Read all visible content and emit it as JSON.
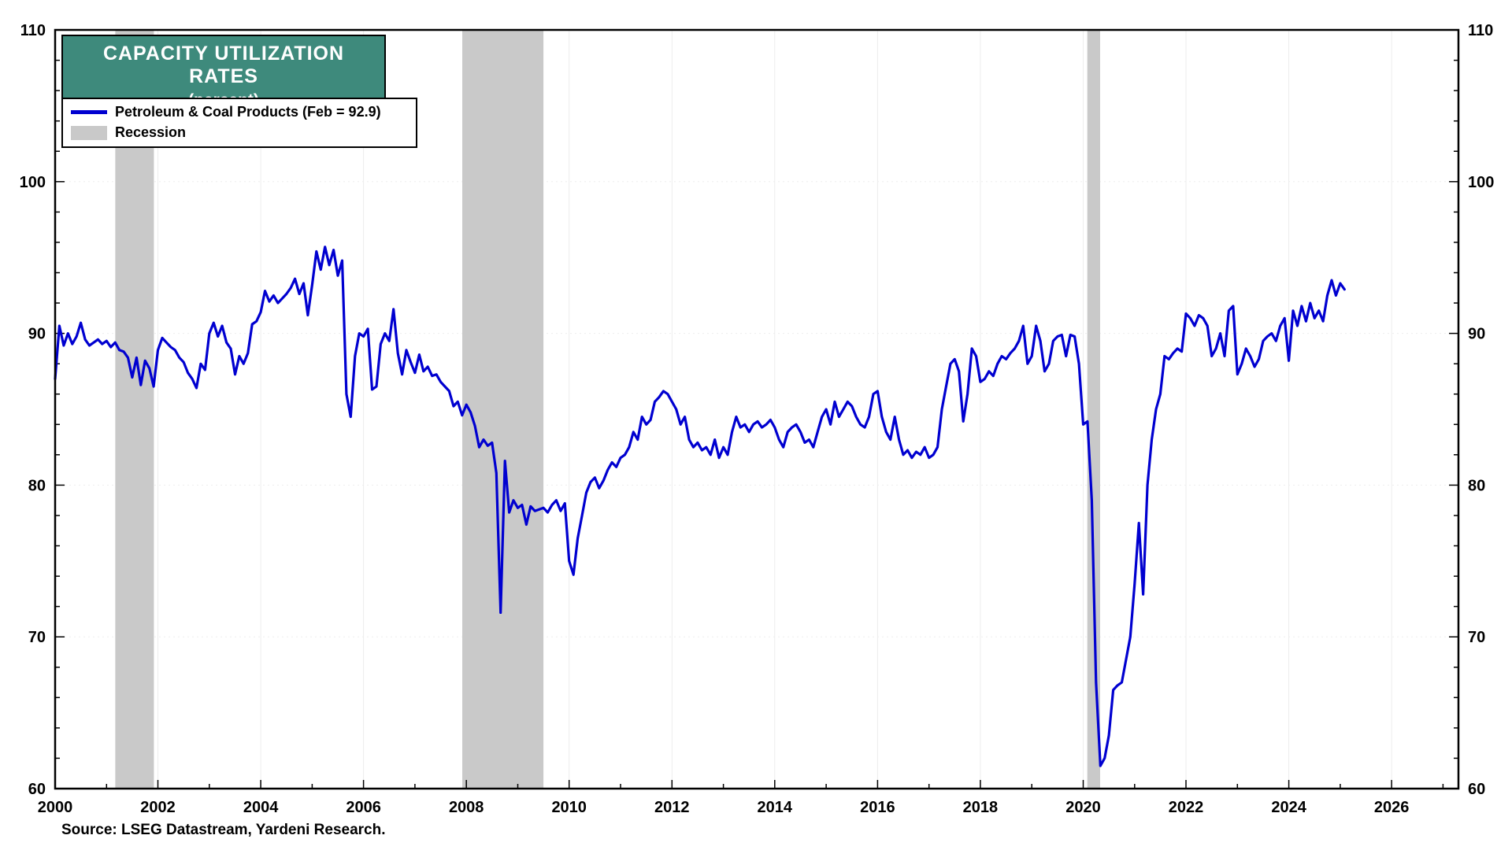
{
  "title": {
    "line1": "CAPACITY UTILIZATION RATES",
    "line2": "(percent)"
  },
  "legend": [
    {
      "label": "Petroleum & Coal Products (Feb = 92.9)",
      "swatch": "line",
      "color": "#0000d0"
    },
    {
      "label": "Recession",
      "swatch": "box",
      "color": "#c9c9c9"
    }
  ],
  "source": "Source: LSEG Datastream, Yardeni Research.",
  "colors": {
    "title_bg": "#3e8a7c",
    "title_text": "#ffffff",
    "frame": "#000000",
    "grid": "#ededed"
  },
  "chart_data": {
    "type": "line",
    "title": "Capacity Utilization Rates (percent)",
    "series_name": "Petroleum & Coal Products",
    "latest_label": "Feb = 92.9",
    "x_start": 2000,
    "x_step_months": 1,
    "xlim": [
      2000,
      2027.3
    ],
    "ylim": [
      60,
      110
    ],
    "x_ticks": [
      2000,
      2002,
      2004,
      2006,
      2008,
      2010,
      2012,
      2014,
      2016,
      2018,
      2020,
      2022,
      2024,
      2026
    ],
    "y_ticks": [
      60,
      70,
      80,
      90,
      100,
      110
    ],
    "y_minor_step": 2,
    "legend_position": "top-left",
    "grid": true,
    "line_color": "#0000d0",
    "recession_color": "#c9c9c9",
    "recessions": [
      [
        2001.17,
        2001.92
      ],
      [
        2007.92,
        2009.5
      ],
      [
        2020.08,
        2020.33
      ]
    ],
    "values": [
      87.0,
      90.5,
      89.2,
      90.0,
      89.3,
      89.8,
      90.7,
      89.6,
      89.2,
      89.4,
      89.6,
      89.3,
      89.5,
      89.1,
      89.4,
      88.9,
      88.8,
      88.4,
      87.1,
      88.4,
      86.6,
      88.2,
      87.7,
      86.5,
      88.9,
      89.7,
      89.4,
      89.1,
      88.9,
      88.4,
      88.1,
      87.4,
      87.0,
      86.4,
      88.0,
      87.6,
      90.0,
      90.7,
      89.8,
      90.5,
      89.4,
      89.0,
      87.3,
      88.5,
      88.0,
      88.7,
      90.6,
      90.8,
      91.4,
      92.8,
      92.1,
      92.5,
      92.0,
      92.3,
      92.6,
      93.0,
      93.6,
      92.6,
      93.3,
      91.2,
      93.2,
      95.4,
      94.2,
      95.7,
      94.5,
      95.5,
      93.8,
      94.8,
      86.0,
      84.5,
      88.5,
      90.0,
      89.8,
      90.3,
      86.3,
      86.5,
      89.3,
      90.0,
      89.5,
      91.6,
      88.7,
      87.3,
      88.9,
      88.1,
      87.4,
      88.6,
      87.5,
      87.8,
      87.2,
      87.3,
      86.8,
      86.5,
      86.2,
      85.2,
      85.5,
      84.6,
      85.3,
      84.8,
      83.9,
      82.5,
      83.0,
      82.6,
      82.8,
      80.8,
      71.6,
      81.6,
      78.2,
      79.0,
      78.5,
      78.7,
      77.4,
      78.6,
      78.3,
      78.4,
      78.5,
      78.2,
      78.7,
      79.0,
      78.3,
      78.8,
      75.0,
      74.1,
      76.5,
      78.0,
      79.5,
      80.2,
      80.5,
      79.8,
      80.3,
      81.0,
      81.5,
      81.2,
      81.8,
      82.0,
      82.5,
      83.5,
      83.0,
      84.5,
      84.0,
      84.3,
      85.5,
      85.8,
      86.2,
      86.0,
      85.5,
      85.0,
      84.0,
      84.5,
      83.0,
      82.5,
      82.8,
      82.3,
      82.5,
      82.0,
      83.0,
      81.8,
      82.5,
      82.0,
      83.5,
      84.5,
      83.8,
      84.0,
      83.5,
      84.0,
      84.2,
      83.8,
      84.0,
      84.3,
      83.8,
      83.0,
      82.5,
      83.5,
      83.8,
      84.0,
      83.5,
      82.8,
      83.0,
      82.5,
      83.5,
      84.5,
      85.0,
      84.0,
      85.5,
      84.5,
      85.0,
      85.5,
      85.2,
      84.5,
      84.0,
      83.8,
      84.5,
      86.0,
      86.2,
      84.5,
      83.5,
      83.0,
      84.5,
      83.0,
      82.0,
      82.3,
      81.8,
      82.2,
      82.0,
      82.5,
      81.8,
      82.0,
      82.5,
      85.0,
      86.5,
      88.0,
      88.3,
      87.5,
      84.2,
      86.0,
      89.0,
      88.5,
      86.8,
      87.0,
      87.5,
      87.2,
      88.0,
      88.5,
      88.3,
      88.7,
      89.0,
      89.5,
      90.5,
      88.0,
      88.5,
      90.5,
      89.5,
      87.5,
      88.0,
      89.5,
      89.8,
      89.9,
      88.5,
      89.9,
      89.8,
      88.0,
      84.0,
      84.2,
      79.0,
      67.0,
      61.5,
      62.0,
      63.5,
      66.5,
      66.8,
      67.0,
      68.5,
      70.0,
      73.5,
      77.5,
      72.8,
      80.0,
      83.0,
      85.0,
      86.0,
      88.5,
      88.3,
      88.7,
      89.0,
      88.8,
      91.3,
      91.0,
      90.5,
      91.2,
      91.0,
      90.5,
      88.5,
      89.0,
      90.0,
      88.5,
      91.5,
      91.8,
      87.3,
      88.0,
      89.0,
      88.5,
      87.8,
      88.3,
      89.5,
      89.8,
      90.0,
      89.5,
      90.5,
      91.0,
      88.2,
      91.5,
      90.5,
      91.8,
      90.8,
      92.0,
      91.0,
      91.5,
      90.8,
      92.5,
      93.5,
      92.5,
      93.3,
      92.9
    ]
  }
}
